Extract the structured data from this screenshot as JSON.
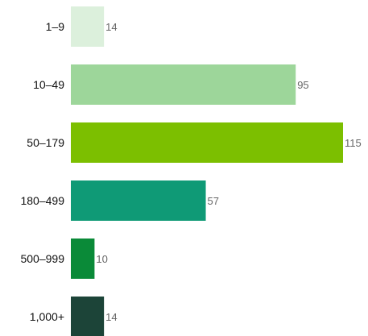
{
  "chart_data": {
    "type": "bar",
    "orientation": "horizontal",
    "categories": [
      "1–9",
      "10–49",
      "50–179",
      "180–499",
      "500–999",
      "1,000+"
    ],
    "values": [
      14,
      95,
      115,
      57,
      10,
      14
    ],
    "value_labels": [
      "14",
      "95",
      "115",
      "57",
      "10",
      "14"
    ],
    "colors": [
      "#dcf0dc",
      "#9dd69a",
      "#7cbf00",
      "#0f9a76",
      "#0a8a38",
      "#1c4438"
    ],
    "title": "",
    "xlabel": "",
    "ylabel": "",
    "xlim": [
      0,
      115
    ],
    "grid": false,
    "legend": "none"
  }
}
